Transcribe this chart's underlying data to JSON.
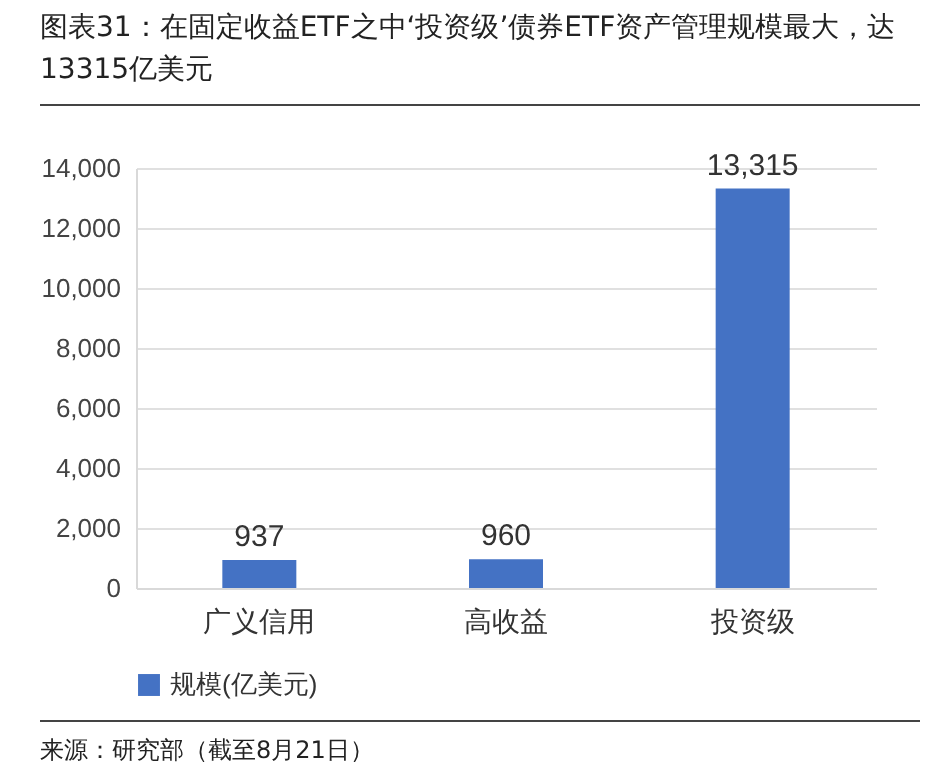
{
  "chart_data": {
    "type": "bar",
    "title": "图表31：在固定收益ETF之中‘投资级’债券ETF资产管理规模最大，达13315亿美元",
    "categories": [
      "广义信用",
      "高收益",
      "投资级"
    ],
    "series": [
      {
        "name": "规模(亿美元)",
        "color": "#4472c4",
        "values": [
          937,
          960,
          13315
        ],
        "value_labels": [
          "937",
          "960",
          "13,315"
        ]
      }
    ],
    "ylim": [
      0,
      14000
    ],
    "yticks": [
      0,
      {
        "value": 2000,
        "label": "2,000"
      },
      {
        "value": 4000,
        "label": "4,000"
      },
      {
        "value": 6000,
        "label": "6,000"
      },
      {
        "value": 8000,
        "label": "8,000"
      },
      {
        "value": 10000,
        "label": "10,000"
      },
      {
        "value": 12000,
        "label": "12,000"
      },
      {
        "value": 14000,
        "label": "14,000"
      }
    ],
    "grid": "y",
    "legend": "bottom",
    "annotations": [
      "来源：研究部（截至8月21日）"
    ]
  }
}
